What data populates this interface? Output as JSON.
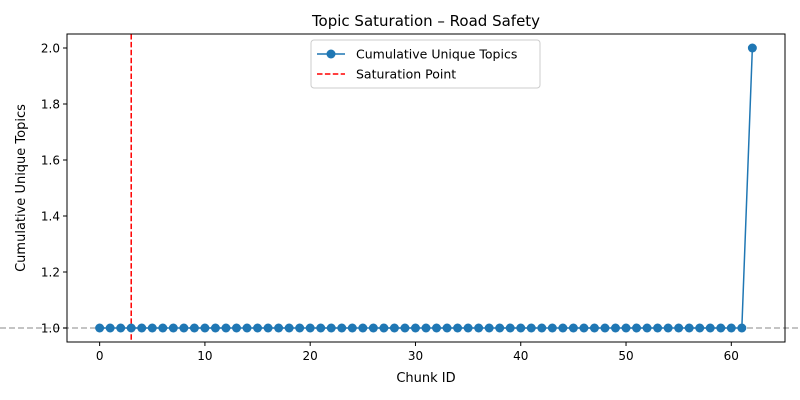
{
  "chart_data": {
    "type": "line",
    "title": "Topic Saturation – Road Safety",
    "xlabel": "Chunk ID",
    "ylabel": "Cumulative Unique Topics",
    "xlim": [
      -3.1,
      65.1
    ],
    "ylim": [
      0.95,
      2.05
    ],
    "xticks": [
      0,
      10,
      20,
      30,
      40,
      50,
      60
    ],
    "yticks": [
      1.0,
      1.2,
      1.4,
      1.6,
      1.8,
      2.0
    ],
    "grid": false,
    "legend_position": "top-center",
    "x": [
      0,
      1,
      2,
      3,
      4,
      5,
      6,
      7,
      8,
      9,
      10,
      11,
      12,
      13,
      14,
      15,
      16,
      17,
      18,
      19,
      20,
      21,
      22,
      23,
      24,
      25,
      26,
      27,
      28,
      29,
      30,
      31,
      32,
      33,
      34,
      35,
      36,
      37,
      38,
      39,
      40,
      41,
      42,
      43,
      44,
      45,
      46,
      47,
      48,
      49,
      50,
      51,
      52,
      53,
      54,
      55,
      56,
      57,
      58,
      59,
      60,
      61,
      62
    ],
    "series": [
      {
        "name": "Cumulative Unique Topics",
        "color": "#1f77b4",
        "marker": "circle",
        "values": [
          1,
          1,
          1,
          1,
          1,
          1,
          1,
          1,
          1,
          1,
          1,
          1,
          1,
          1,
          1,
          1,
          1,
          1,
          1,
          1,
          1,
          1,
          1,
          1,
          1,
          1,
          1,
          1,
          1,
          1,
          1,
          1,
          1,
          1,
          1,
          1,
          1,
          1,
          1,
          1,
          1,
          1,
          1,
          1,
          1,
          1,
          1,
          1,
          1,
          1,
          1,
          1,
          1,
          1,
          1,
          1,
          1,
          1,
          1,
          1,
          1,
          1,
          2
        ]
      }
    ],
    "saturation_line": {
      "name": "Saturation Point",
      "x": 3,
      "color": "#ff0000",
      "style": "dashed"
    },
    "reference_line": {
      "y": 1.0,
      "color": "#b0b0b0",
      "style": "dashed"
    }
  }
}
